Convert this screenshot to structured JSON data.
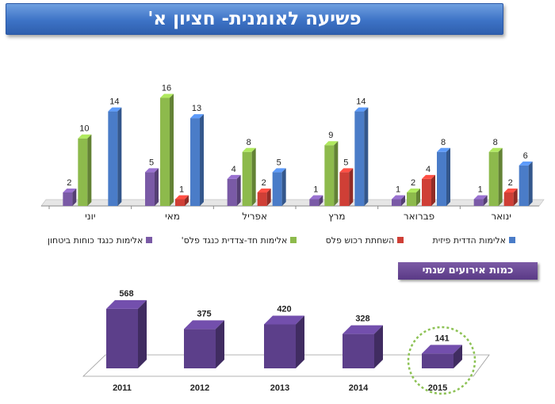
{
  "title": "פשיעה לאומנית- חציון א'",
  "section_title": "כמות אירועים שנתי",
  "colors": {
    "purple": "#7a5aa6",
    "green": "#8dba4c",
    "red": "#cf3f36",
    "blue": "#4a7cc8",
    "annual_bar": "#5c3f8a",
    "highlight_circle": "#8dc255"
  },
  "chart_data": [
    {
      "type": "bar",
      "categories": [
        "ינואר",
        "פברואר",
        "מרץ",
        "אפריל",
        "מאי",
        "יוני"
      ],
      "series": [
        {
          "name": "אלימות כנגד כוחות ביטחון",
          "color": "#7a5aa6",
          "values": [
            1,
            1,
            1,
            4,
            5,
            2
          ]
        },
        {
          "name": "אלימות חד-צדדית כנגד פלס'",
          "color": "#8dba4c",
          "values": [
            8,
            2,
            9,
            8,
            16,
            10
          ]
        },
        {
          "name": "השחתת רכוש פלס",
          "color": "#cf3f36",
          "values": [
            2,
            4,
            5,
            2,
            1,
            null
          ]
        },
        {
          "name": "אלימות הדדית פיזית",
          "color": "#4a7cc8",
          "values": [
            6,
            8,
            14,
            5,
            13,
            14
          ]
        }
      ],
      "data_labels": [
        [
          "1",
          "1",
          "1",
          "4",
          "5",
          "2"
        ],
        [
          "8",
          "2",
          "9",
          "8",
          "16",
          "10"
        ],
        [
          "2",
          "4",
          "5",
          "2",
          "1",
          ""
        ],
        [
          "6",
          "8",
          "14",
          "5",
          "13",
          "14"
        ]
      ],
      "ylim": [
        0,
        17
      ],
      "category_order": "right-to-left",
      "legend_position": "bottom",
      "grid": false
    },
    {
      "type": "bar",
      "categories": [
        "2011",
        "2012",
        "2013",
        "2014",
        "2015"
      ],
      "values": [
        568,
        375,
        420,
        328,
        141
      ],
      "data_labels": [
        "568",
        "375",
        "420",
        "328",
        "141"
      ],
      "ylim": [
        0,
        620
      ],
      "highlighted_category": "2015",
      "grid": false
    }
  ]
}
